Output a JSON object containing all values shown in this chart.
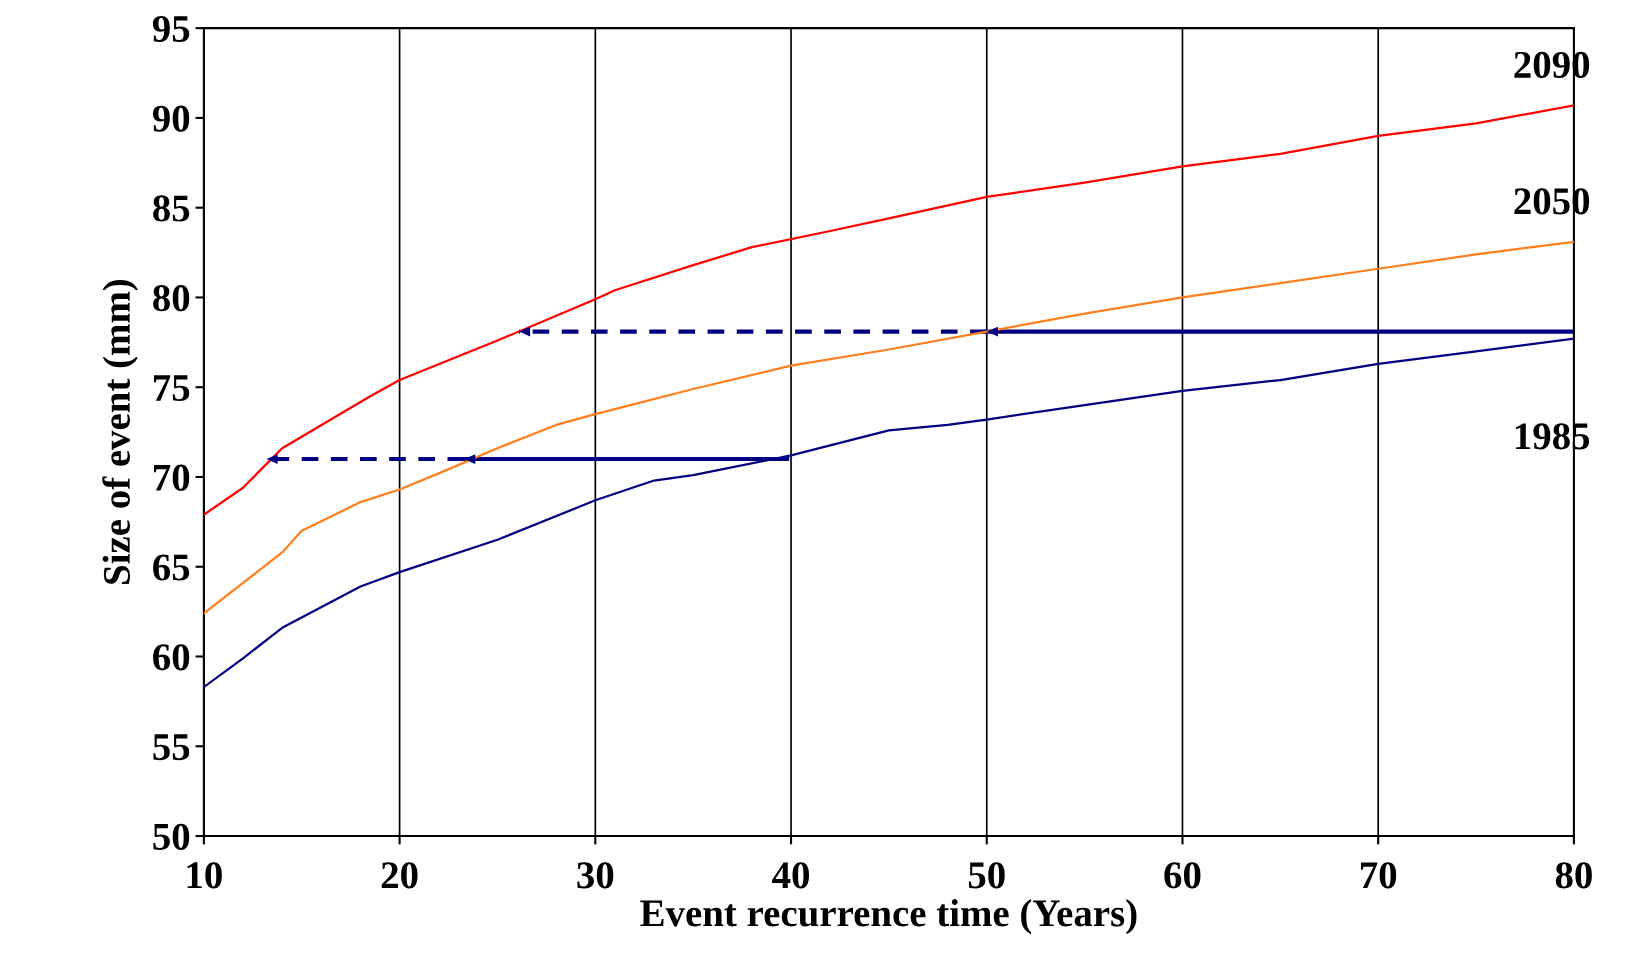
{
  "chart_data": {
    "type": "line",
    "xlabel": "Event recurrence time (Years)",
    "ylabel": "Size of event (mm)",
    "xlim": [
      10,
      80
    ],
    "xticks": [
      10,
      20,
      30,
      40,
      50,
      60,
      70,
      80
    ],
    "ylim": [
      50,
      95
    ],
    "yticks": [
      50,
      55,
      60,
      65,
      70,
      75,
      80,
      85,
      90,
      95
    ],
    "grid": "x",
    "legend": false,
    "series": [
      {
        "name": "2090",
        "color": "#ff0000",
        "x": [
          10,
          12,
          14,
          18.5,
          20,
          25,
          30,
          31,
          35,
          38,
          42,
          45,
          50,
          55,
          60,
          65,
          70,
          75,
          80
        ],
        "values": [
          67.9,
          69.4,
          71.6,
          74.5,
          75.4,
          77.6,
          79.9,
          80.4,
          81.8,
          82.8,
          83.7,
          84.4,
          85.6,
          86.4,
          87.3,
          88.0,
          89.0,
          89.7,
          90.7
        ]
      },
      {
        "name": "2050",
        "color": "#ff7f1e",
        "x": [
          10,
          12,
          14,
          15,
          18,
          20,
          22,
          25,
          28,
          30,
          35,
          40,
          45,
          50,
          55,
          60,
          65,
          70,
          75,
          80
        ],
        "values": [
          62.4,
          64.1,
          65.8,
          67.0,
          68.6,
          69.3,
          70.2,
          71.6,
          72.9,
          73.5,
          74.9,
          76.2,
          77.1,
          78.1,
          79.1,
          80.0,
          80.8,
          81.6,
          82.4,
          83.1
        ]
      },
      {
        "name": "1985",
        "color": "#000080",
        "x": [
          10,
          12,
          14,
          18,
          20,
          25,
          30,
          33,
          35,
          40,
          45,
          48,
          50,
          55,
          60,
          65,
          70,
          75,
          80
        ],
        "values": [
          58.3,
          59.9,
          61.6,
          63.9,
          64.7,
          66.5,
          68.7,
          69.8,
          70.1,
          71.2,
          72.6,
          72.9,
          73.2,
          74.0,
          74.8,
          75.4,
          76.3,
          77.0,
          77.7
        ]
      },
      {
        "color": "#000080",
        "line_style": "solid",
        "x": [
          80,
          50
        ],
        "values": [
          78.1,
          78.1
        ]
      },
      {
        "color": "#000080",
        "line_style": "dashed",
        "x": [
          50,
          26.1
        ],
        "values": [
          78.1,
          78.1
        ]
      },
      {
        "color": "#000080",
        "line_style": "solid",
        "x": [
          39.8,
          23.3
        ],
        "values": [
          71.0,
          71.0
        ]
      },
      {
        "color": "#000080",
        "line_style": "dashed",
        "x": [
          23.3,
          13.2
        ],
        "values": [
          71.0,
          71.0
        ]
      }
    ]
  }
}
